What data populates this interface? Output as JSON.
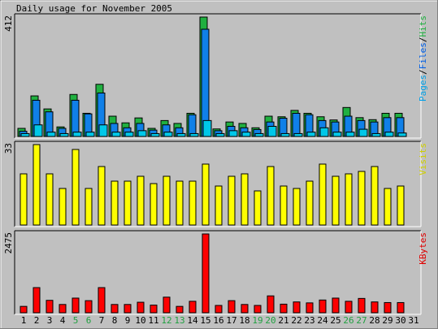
{
  "chart_data": {
    "type": "bar",
    "title": "Daily usage for November 2005",
    "days": [
      "1",
      "2",
      "3",
      "4",
      "5",
      "6",
      "7",
      "8",
      "9",
      "10",
      "11",
      "12",
      "13",
      "14",
      "15",
      "16",
      "17",
      "18",
      "19",
      "20",
      "21",
      "22",
      "23",
      "24",
      "25",
      "26",
      "27",
      "28",
      "29",
      "30",
      "31"
    ],
    "weekend_days": [
      "5",
      "6",
      "12",
      "13",
      "19",
      "20",
      "26",
      "27"
    ],
    "panels": [
      {
        "id": "usage",
        "ylabel_parts": [
          {
            "text": "Pages",
            "color": "#00a0e8"
          },
          {
            "text": "/",
            "color": "#000000"
          },
          {
            "text": "Files",
            "color": "#0060e8"
          },
          {
            "text": "/",
            "color": "#000000"
          },
          {
            "text": "Hits",
            "color": "#20b040"
          }
        ],
        "ymax_label": "412",
        "ymax": 412,
        "series": [
          {
            "name": "Hits",
            "color": "#20b040",
            "values": [
              28,
              140,
              95,
              33,
              145,
              80,
              180,
              70,
              47,
              64,
              28,
              55,
              45,
              80,
              412,
              26,
              50,
              45,
              30,
              70,
              68,
              90,
              80,
              68,
              57,
              100,
              65,
              58,
              80,
              80,
              0
            ]
          },
          {
            "name": "Files",
            "color": "#1080e8",
            "values": [
              18,
              125,
              85,
              28,
              125,
              78,
              150,
              45,
              30,
              45,
              22,
              40,
              30,
              75,
              370,
              20,
              35,
              30,
              24,
              50,
              63,
              80,
              75,
              55,
              50,
              70,
              55,
              50,
              65,
              65,
              0
            ]
          },
          {
            "name": "Pages",
            "color": "#00c8e8",
            "values": [
              10,
              40,
              15,
              10,
              15,
              15,
              40,
              15,
              15,
              20,
              10,
              15,
              10,
              10,
              55,
              10,
              20,
              15,
              10,
              35,
              10,
              10,
              15,
              30,
              15,
              15,
              25,
              10,
              15,
              12,
              0
            ]
          }
        ]
      },
      {
        "id": "visits",
        "ylabel_parts": [
          {
            "text": "Visits",
            "color": "#d0d000"
          }
        ],
        "ymax_label": "33",
        "ymax": 33,
        "series": [
          {
            "name": "Visits",
            "color": "#ffff00",
            "values": [
              21,
              33,
              21,
              15,
              31,
              15,
              24,
              18,
              18,
              20,
              17,
              20,
              18,
              18,
              25,
              16,
              20,
              21,
              14,
              24,
              16,
              15,
              18,
              25,
              20,
              21,
              22,
              24,
              15,
              16,
              0
            ]
          }
        ]
      },
      {
        "id": "kbytes",
        "ylabel_parts": [
          {
            "text": "KBytes",
            "color": "#e00000"
          }
        ],
        "ymax_label": "2475",
        "ymax": 2475,
        "series": [
          {
            "name": "KBytes",
            "color": "#ff0000",
            "values": [
              200,
              790,
              390,
              260,
              460,
              380,
              790,
              260,
              260,
              330,
              240,
              490,
              200,
              360,
              2475,
              230,
              380,
              260,
              230,
              530,
              270,
              340,
              310,
              400,
              460,
              360,
              450,
              340,
              320,
              320,
              0
            ]
          }
        ]
      }
    ]
  }
}
